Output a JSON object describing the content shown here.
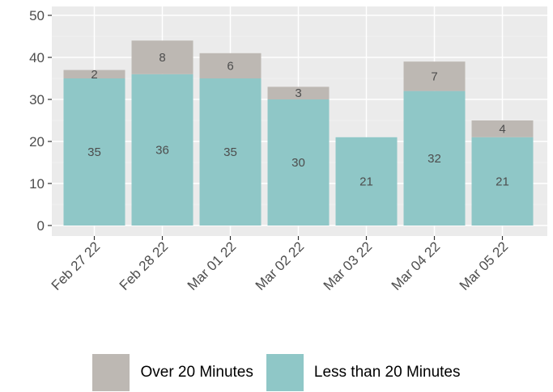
{
  "chart_data": {
    "type": "bar",
    "stacked": true,
    "categories": [
      "Feb 27 22",
      "Feb 28 22",
      "Mar 01 22",
      "Mar 02 22",
      "Mar 03 22",
      "Mar 04 22",
      "Mar 05 22"
    ],
    "series": [
      {
        "name": "Less than 20 Minutes",
        "color": "#8fc7c7",
        "values": [
          35,
          36,
          35,
          30,
          21,
          32,
          21
        ]
      },
      {
        "name": "Over 20 Minutes",
        "color": "#bdb8b3",
        "values": [
          2,
          8,
          6,
          3,
          0,
          7,
          4
        ]
      }
    ],
    "ylim": [
      0,
      50
    ],
    "yticks": [
      "0",
      "10",
      "20",
      "30",
      "40",
      "50"
    ],
    "grid": true,
    "legend_position": "bottom",
    "panel_background": "#ebebeb",
    "title": "",
    "xlabel": "",
    "ylabel": ""
  },
  "legend": {
    "items": [
      {
        "label": "Over 20 Minutes",
        "color": "#bdb8b3"
      },
      {
        "label": "Less than 20 Minutes",
        "color": "#8fc7c7"
      }
    ]
  }
}
